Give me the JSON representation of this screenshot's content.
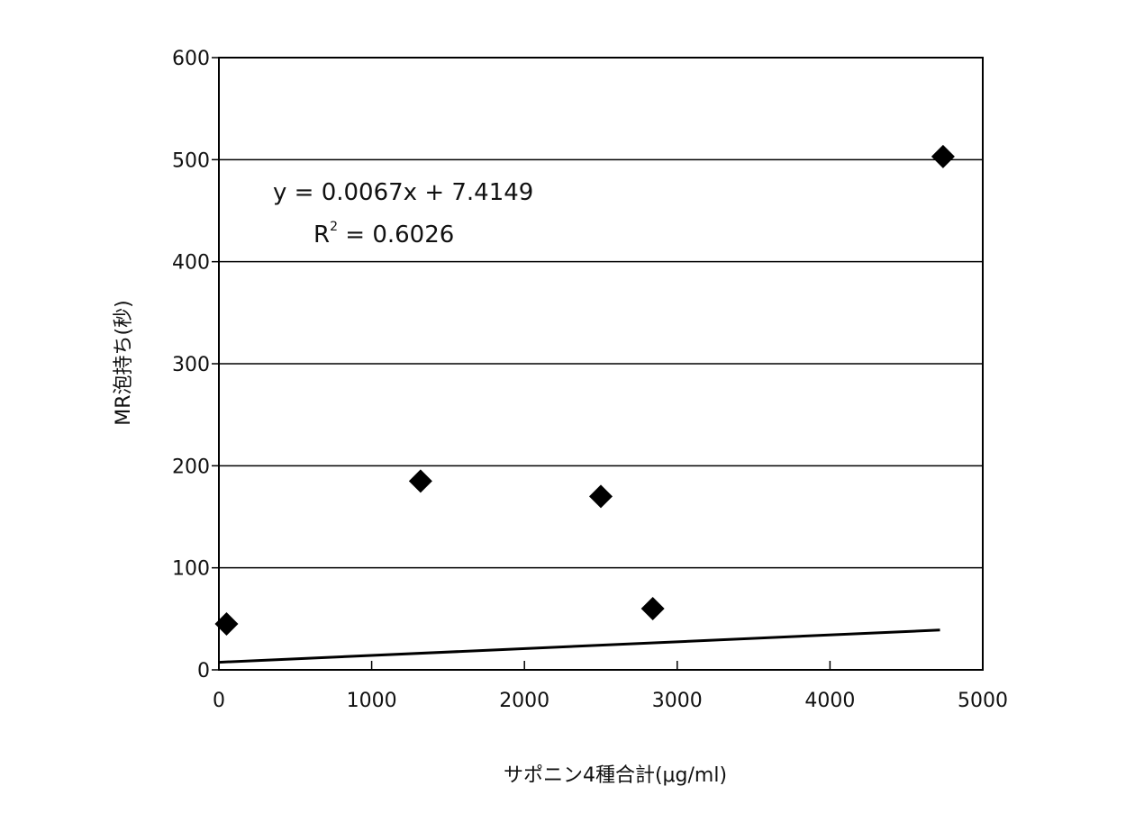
{
  "chart_data": {
    "type": "scatter",
    "title": "",
    "xlabel": "サポニン4種合計(μg/ml)",
    "ylabel": "MR泡持ち(秒)",
    "xlim": [
      0,
      5000
    ],
    "ylim": [
      0,
      600
    ],
    "x_ticks": [
      0,
      1000,
      2000,
      3000,
      4000,
      5000
    ],
    "y_ticks": [
      0,
      100,
      200,
      300,
      400,
      500,
      600
    ],
    "grid": "horizontal",
    "marker": "diamond",
    "points": [
      {
        "x": 50,
        "y": 45
      },
      {
        "x": 1320,
        "y": 185
      },
      {
        "x": 2500,
        "y": 170
      },
      {
        "x": 2840,
        "y": 60
      },
      {
        "x": 4740,
        "y": 503
      }
    ],
    "trendline": {
      "slope": 0.0067,
      "intercept": 7.4149,
      "x_range": [
        0,
        4720
      ]
    },
    "annotations": {
      "equation": "y = 0.0067x + 7.4149",
      "r2_prefix": "R",
      "r2_sup": "2",
      "r2_value": " = 0.6026"
    },
    "colors": {
      "marks": "#000000",
      "frame": "#000000",
      "background": "#ffffff"
    }
  }
}
